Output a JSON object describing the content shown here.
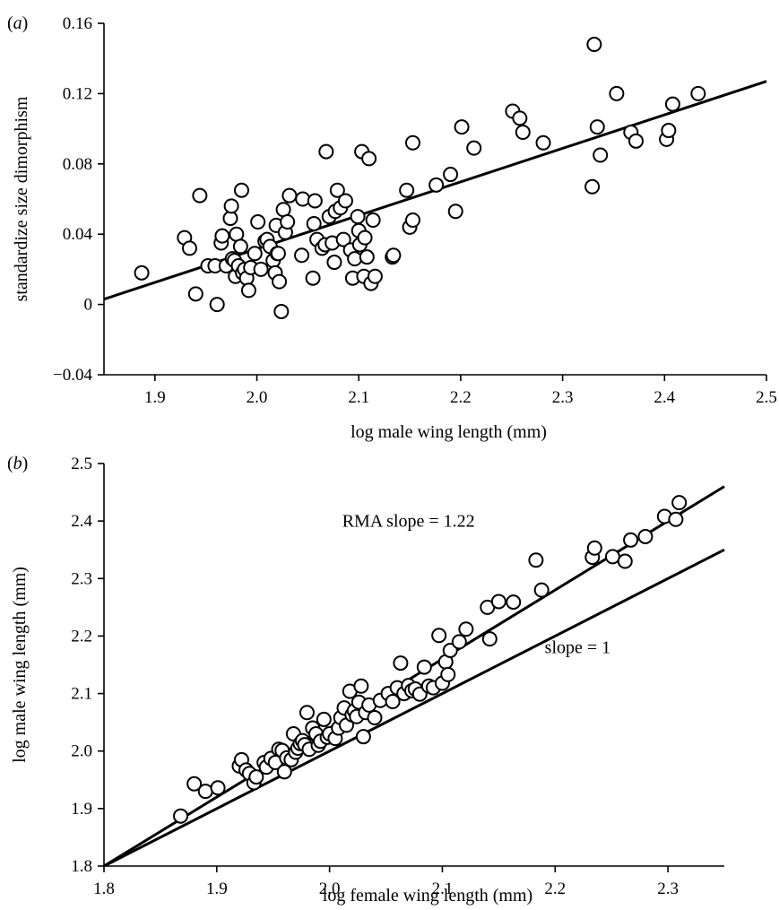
{
  "chart_data": [
    {
      "type": "scatter",
      "panel_label_open": "(",
      "panel_label_letter": "a",
      "panel_label_close": ")",
      "xlabel": "log male wing length (mm)",
      "ylabel": "standardize size dimorphism",
      "xlim": [
        1.85,
        2.5
      ],
      "ylim": [
        -0.04,
        0.16
      ],
      "xticks": [
        "1.9",
        "2.0",
        "2.1",
        "2.2",
        "2.3",
        "2.4",
        "2.5"
      ],
      "yticks": [
        "−0.04",
        "0",
        "0.04",
        "0.08",
        "0.12",
        "0.16"
      ],
      "xtick_values": [
        1.9,
        2.0,
        2.1,
        2.2,
        2.3,
        2.4,
        2.5
      ],
      "ytick_values": [
        -0.04,
        0,
        0.04,
        0.08,
        0.12,
        0.16
      ],
      "lines": [
        {
          "x1": 1.85,
          "y1": 0.003,
          "x2": 2.5,
          "y2": 0.127
        }
      ],
      "points": [
        [
          1.887,
          0.018
        ],
        [
          1.929,
          0.038
        ],
        [
          1.934,
          0.032
        ],
        [
          1.94,
          0.006
        ],
        [
          1.944,
          0.062
        ],
        [
          1.952,
          0.022
        ],
        [
          1.959,
          0.022
        ],
        [
          1.961,
          0.0
        ],
        [
          1.965,
          0.035
        ],
        [
          1.966,
          0.039
        ],
        [
          1.97,
          0.022
        ],
        [
          1.974,
          0.049
        ],
        [
          1.975,
          0.056
        ],
        [
          1.976,
          0.026
        ],
        [
          1.978,
          0.025
        ],
        [
          1.979,
          0.016
        ],
        [
          1.98,
          0.04
        ],
        [
          1.982,
          0.022
        ],
        [
          1.984,
          0.033
        ],
        [
          1.985,
          0.065
        ],
        [
          1.986,
          0.018
        ],
        [
          1.988,
          0.02
        ],
        [
          1.99,
          0.015
        ],
        [
          1.992,
          0.008
        ],
        [
          1.994,
          0.021
        ],
        [
          1.998,
          0.029
        ],
        [
          2.001,
          0.047
        ],
        [
          2.004,
          0.02
        ],
        [
          2.008,
          0.036
        ],
        [
          2.01,
          0.037
        ],
        [
          2.013,
          0.033
        ],
        [
          2.016,
          0.025
        ],
        [
          2.018,
          0.018
        ],
        [
          2.019,
          0.045
        ],
        [
          2.02,
          0.029
        ],
        [
          2.021,
          0.029
        ],
        [
          2.022,
          0.013
        ],
        [
          2.024,
          -0.004
        ],
        [
          2.026,
          0.054
        ],
        [
          2.028,
          0.041
        ],
        [
          2.03,
          0.047
        ],
        [
          2.032,
          0.062
        ],
        [
          2.044,
          0.028
        ],
        [
          2.045,
          0.06
        ],
        [
          2.055,
          0.015
        ],
        [
          2.056,
          0.046
        ],
        [
          2.057,
          0.059
        ],
        [
          2.059,
          0.037
        ],
        [
          2.064,
          0.032
        ],
        [
          2.067,
          0.034
        ],
        [
          2.068,
          0.087
        ],
        [
          2.071,
          0.05
        ],
        [
          2.074,
          0.035
        ],
        [
          2.076,
          0.024
        ],
        [
          2.077,
          0.053
        ],
        [
          2.079,
          0.065
        ],
        [
          2.082,
          0.055
        ],
        [
          2.085,
          0.037
        ],
        [
          2.087,
          0.059
        ],
        [
          2.092,
          0.031
        ],
        [
          2.094,
          0.015
        ],
        [
          2.096,
          0.026
        ],
        [
          2.099,
          0.05
        ],
        [
          2.1,
          0.042
        ],
        [
          2.101,
          0.034
        ],
        [
          2.103,
          0.087
        ],
        [
          2.105,
          0.016
        ],
        [
          2.106,
          0.038
        ],
        [
          2.108,
          0.027
        ],
        [
          2.11,
          0.083
        ],
        [
          2.112,
          0.012
        ],
        [
          2.114,
          0.048
        ],
        [
          2.116,
          0.016
        ],
        [
          2.133,
          0.027
        ],
        [
          2.134,
          0.028
        ],
        [
          2.147,
          0.065
        ],
        [
          2.15,
          0.044
        ],
        [
          2.153,
          0.048
        ],
        [
          2.153,
          0.092
        ],
        [
          2.176,
          0.068
        ],
        [
          2.19,
          0.074
        ],
        [
          2.195,
          0.053
        ],
        [
          2.201,
          0.101
        ],
        [
          2.213,
          0.089
        ],
        [
          2.251,
          0.11
        ],
        [
          2.258,
          0.106
        ],
        [
          2.261,
          0.098
        ],
        [
          2.281,
          0.092
        ],
        [
          2.329,
          0.067
        ],
        [
          2.331,
          0.148
        ],
        [
          2.334,
          0.101
        ],
        [
          2.337,
          0.085
        ],
        [
          2.353,
          0.12
        ],
        [
          2.367,
          0.098
        ],
        [
          2.372,
          0.093
        ],
        [
          2.402,
          0.094
        ],
        [
          2.404,
          0.099
        ],
        [
          2.408,
          0.114
        ],
        [
          2.433,
          0.12
        ]
      ]
    },
    {
      "type": "scatter",
      "panel_label_open": "(",
      "panel_label_letter": "b",
      "panel_label_close": ")",
      "xlabel": "log female wing length (mm)",
      "ylabel": "log male wing length (mm)",
      "xlim": [
        1.8,
        2.35
      ],
      "ylim": [
        1.8,
        2.5
      ],
      "xticks": [
        "1.8",
        "1.9",
        "2.0",
        "2.1",
        "2.2",
        "2.3"
      ],
      "yticks": [
        "1.8",
        "1.9",
        "2.0",
        "2.1",
        "2.2",
        "2.3",
        "2.4",
        "2.5"
      ],
      "xtick_values": [
        1.8,
        1.9,
        2.0,
        2.1,
        2.2,
        2.3
      ],
      "ytick_values": [
        1.8,
        1.9,
        2.0,
        2.1,
        2.2,
        2.3,
        2.4,
        2.5
      ],
      "lines": [
        {
          "x1": 1.8,
          "y1": 1.8,
          "x2": 2.35,
          "y2": 2.46
        },
        {
          "x1": 1.8,
          "y1": 1.8,
          "x2": 2.35,
          "y2": 2.35
        }
      ],
      "annotations": [
        {
          "text": "RMA slope = 1.22",
          "x": 2.07,
          "y": 2.39
        },
        {
          "text": "slope = 1",
          "x": 2.22,
          "y": 2.17
        }
      ],
      "points": [
        [
          1.868,
          1.887
        ],
        [
          1.88,
          1.943
        ],
        [
          1.89,
          1.93
        ],
        [
          1.901,
          1.936
        ],
        [
          1.92,
          1.974
        ],
        [
          1.922,
          1.985
        ],
        [
          1.926,
          1.967
        ],
        [
          1.929,
          1.961
        ],
        [
          1.933,
          1.945
        ],
        [
          1.935,
          1.955
        ],
        [
          1.942,
          1.98
        ],
        [
          1.944,
          1.972
        ],
        [
          1.948,
          1.987
        ],
        [
          1.952,
          1.98
        ],
        [
          1.955,
          2.003
        ],
        [
          1.958,
          2.001
        ],
        [
          1.96,
          1.964
        ],
        [
          1.962,
          1.988
        ],
        [
          1.966,
          1.985
        ],
        [
          1.968,
          2.03
        ],
        [
          1.97,
          1.998
        ],
        [
          1.972,
          2.005
        ],
        [
          1.974,
          2.013
        ],
        [
          1.976,
          2.018
        ],
        [
          1.978,
          2.011
        ],
        [
          1.98,
          2.067
        ],
        [
          1.982,
          2.003
        ],
        [
          1.985,
          2.04
        ],
        [
          1.988,
          2.03
        ],
        [
          1.99,
          2.01
        ],
        [
          1.992,
          2.017
        ],
        [
          1.995,
          2.055
        ],
        [
          1.998,
          2.024
        ],
        [
          2.0,
          2.03
        ],
        [
          2.005,
          2.022
        ],
        [
          2.008,
          2.04
        ],
        [
          2.01,
          2.058
        ],
        [
          2.013,
          2.075
        ],
        [
          2.015,
          2.045
        ],
        [
          2.018,
          2.104
        ],
        [
          2.02,
          2.063
        ],
        [
          2.022,
          2.07
        ],
        [
          2.024,
          2.06
        ],
        [
          2.026,
          2.085
        ],
        [
          2.028,
          2.113
        ],
        [
          2.03,
          2.025
        ],
        [
          2.032,
          2.067
        ],
        [
          2.035,
          2.08
        ],
        [
          2.04,
          2.058
        ],
        [
          2.045,
          2.088
        ],
        [
          2.052,
          2.1
        ],
        [
          2.056,
          2.086
        ],
        [
          2.06,
          2.11
        ],
        [
          2.063,
          2.153
        ],
        [
          2.066,
          2.1
        ],
        [
          2.07,
          2.114
        ],
        [
          2.073,
          2.105
        ],
        [
          2.076,
          2.108
        ],
        [
          2.08,
          2.099
        ],
        [
          2.084,
          2.146
        ],
        [
          2.088,
          2.113
        ],
        [
          2.092,
          2.11
        ],
        [
          2.097,
          2.201
        ],
        [
          2.1,
          2.118
        ],
        [
          2.103,
          2.155
        ],
        [
          2.105,
          2.133
        ],
        [
          2.107,
          2.175
        ],
        [
          2.115,
          2.19
        ],
        [
          2.121,
          2.212
        ],
        [
          2.14,
          2.25
        ],
        [
          2.142,
          2.195
        ],
        [
          2.15,
          2.26
        ],
        [
          2.163,
          2.259
        ],
        [
          2.183,
          2.332
        ],
        [
          2.188,
          2.28
        ],
        [
          2.233,
          2.337
        ],
        [
          2.235,
          2.353
        ],
        [
          2.251,
          2.338
        ],
        [
          2.262,
          2.33
        ],
        [
          2.267,
          2.367
        ],
        [
          2.28,
          2.373
        ],
        [
          2.297,
          2.408
        ],
        [
          2.307,
          2.403
        ],
        [
          2.31,
          2.432
        ]
      ]
    }
  ]
}
